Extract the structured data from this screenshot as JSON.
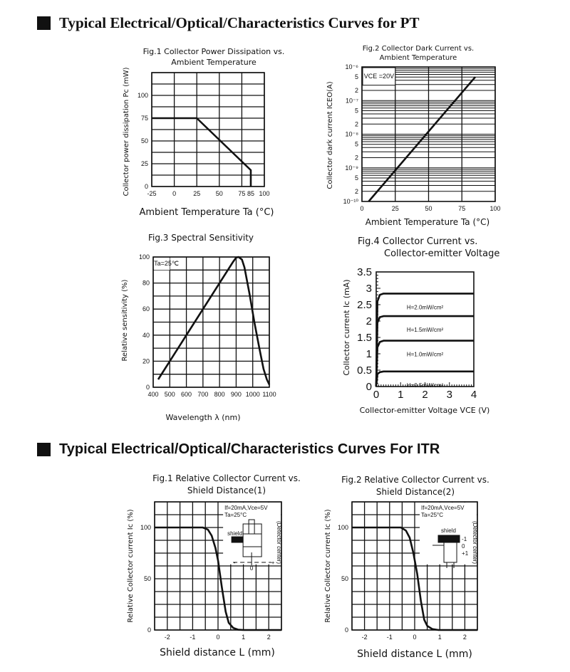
{
  "sections": [
    {
      "title": "Typical Electrical/Optical/Characteristics Curves for PT"
    },
    {
      "title": "Typical Electrical/Optical/Characteristics Curves For ITR"
    }
  ],
  "chart_data": [
    {
      "type": "line",
      "title": [
        "Fig.1 Collector Power Dissipation vs.",
        "Ambient Temperature"
      ],
      "xlabel": "Ambient Temperature  Ta (°C)",
      "ylabel": "Collector power dissipation Pc (mW)",
      "xlim": [
        -25,
        100
      ],
      "ylim": [
        0,
        125
      ],
      "yscale": "linear",
      "grid": true,
      "xgrid": [
        -25,
        0,
        25,
        50,
        75,
        100
      ],
      "ygrid_step": 12.5,
      "xticks": [
        {
          "v": -25,
          "t": "-25"
        },
        {
          "v": 0,
          "t": "0"
        },
        {
          "v": 25,
          "t": "25"
        },
        {
          "v": 50,
          "t": "50"
        },
        {
          "v": 75,
          "t": "75"
        },
        {
          "v": 85,
          "t": "85"
        },
        {
          "v": 100,
          "t": "100"
        }
      ],
      "yticks": [
        {
          "v": 0,
          "t": "0"
        },
        {
          "v": 25,
          "t": "25"
        },
        {
          "v": 50,
          "t": "50"
        },
        {
          "v": 75,
          "t": "75"
        },
        {
          "v": 100,
          "t": "100"
        }
      ],
      "series": [
        {
          "points": [
            [
              -25,
              75
            ],
            [
              25,
              75
            ],
            [
              85,
              18
            ],
            [
              85,
              0
            ]
          ]
        }
      ]
    },
    {
      "type": "line",
      "title": [
        "Fig.2 Collector Dark Current vs.",
        "Ambient Temperature"
      ],
      "xlabel": "Ambient Temperature  Ta (°C)",
      "ylabel": "Collector dark current ICEO(A)",
      "xlim": [
        0,
        100
      ],
      "ylim": [
        1e-10,
        1e-06
      ],
      "yscale": "log",
      "grid": true,
      "xgrid": [
        0,
        25,
        50,
        75,
        100
      ],
      "xticks": [
        {
          "v": 0,
          "t": "0"
        },
        {
          "v": 25,
          "t": "25"
        },
        {
          "v": 50,
          "t": "50"
        },
        {
          "v": 75,
          "t": "75"
        },
        {
          "v": 100,
          "t": "100"
        }
      ],
      "yticks": [
        {
          "v": 1e-06,
          "t": "10⁻⁶"
        },
        {
          "v": 5e-07,
          "t": "5"
        },
        {
          "v": 2e-07,
          "t": "2"
        },
        {
          "v": 1e-07,
          "t": "10⁻⁷"
        },
        {
          "v": 5e-08,
          "t": "5"
        },
        {
          "v": 2e-08,
          "t": "2"
        },
        {
          "v": 1e-08,
          "t": "10⁻⁸"
        },
        {
          "v": 5e-09,
          "t": "5"
        },
        {
          "v": 2e-09,
          "t": "2"
        },
        {
          "v": 1e-09,
          "t": "10⁻⁹"
        },
        {
          "v": 5e-10,
          "t": "5"
        },
        {
          "v": 2e-10,
          "t": "2"
        },
        {
          "v": 1e-10,
          "t": "10⁻¹⁰"
        }
      ],
      "annotation": "VCE =20V",
      "series": [
        {
          "points": [
            [
              5,
              1e-10
            ],
            [
              85,
              5e-07
            ]
          ]
        }
      ]
    },
    {
      "type": "line",
      "title": [
        "Fig.3 Spectral Sensitivity"
      ],
      "xlabel": "Wavelength  λ (nm)",
      "ylabel": "Relative sensitivity (%)",
      "xlim": [
        400,
        1100
      ],
      "ylim": [
        0,
        100
      ],
      "yscale": "linear",
      "grid": true,
      "xgrid": [
        400,
        500,
        600,
        700,
        800,
        900,
        1000,
        1100
      ],
      "ygrid_step": 10,
      "xticks": [
        {
          "v": 400,
          "t": "400"
        },
        {
          "v": 500,
          "t": "500"
        },
        {
          "v": 600,
          "t": "600"
        },
        {
          "v": 700,
          "t": "700"
        },
        {
          "v": 800,
          "t": "800"
        },
        {
          "v": 900,
          "t": "900"
        },
        {
          "v": 1000,
          "t": "1000"
        },
        {
          "v": 1100,
          "t": "1100"
        }
      ],
      "yticks": [
        {
          "v": 0,
          "t": "0"
        },
        {
          "v": 20,
          "t": "20"
        },
        {
          "v": 40,
          "t": "40"
        },
        {
          "v": 60,
          "t": "60"
        },
        {
          "v": 80,
          "t": "80"
        },
        {
          "v": 100,
          "t": "100"
        }
      ],
      "annotation": "Ta=25℃",
      "series": [
        {
          "points": [
            [
              430,
              6
            ],
            [
              880,
              96
            ],
            [
              900,
              99.5
            ],
            [
              915,
              100
            ],
            [
              935,
              98
            ],
            [
              950,
              92
            ],
            [
              980,
              72
            ],
            [
              1010,
              50
            ],
            [
              1040,
              30
            ],
            [
              1065,
              14
            ],
            [
              1085,
              6
            ],
            [
              1100,
              2
            ]
          ]
        }
      ]
    },
    {
      "type": "line",
      "title": [
        "Fig.4  Collector Current vs.",
        "Collector-emitter Voltage"
      ],
      "xlabel": "Collector-emitter Voltage VCE (V)",
      "ylabel": "Collector current Ic (mA)",
      "xlim": [
        0,
        4
      ],
      "ylim": [
        0,
        3.5
      ],
      "yscale": "linear",
      "grid": false,
      "xticks": [
        {
          "v": 0,
          "t": "0"
        },
        {
          "v": 1,
          "t": "1"
        },
        {
          "v": 2,
          "t": "2"
        },
        {
          "v": 3,
          "t": "3"
        },
        {
          "v": 4,
          "t": "4"
        }
      ],
      "yticks": [
        {
          "v": 0,
          "t": "0"
        },
        {
          "v": 0.5,
          "t": "0.5"
        },
        {
          "v": 1,
          "t": "1"
        },
        {
          "v": 1.5,
          "t": "1.5"
        },
        {
          "v": 2,
          "t": "2"
        },
        {
          "v": 2.5,
          "t": "2.5"
        },
        {
          "v": 3,
          "t": "3"
        },
        {
          "v": 3.5,
          "t": "3.5"
        }
      ],
      "series": [
        {
          "name": "H=0.5mW/cm²",
          "points": [
            [
              0,
              0
            ],
            [
              0.05,
              0.38
            ],
            [
              0.15,
              0.44
            ],
            [
              0.3,
              0.46
            ],
            [
              4,
              0.46
            ]
          ]
        },
        {
          "name": "H=1.0mW/cm²",
          "points": [
            [
              0,
              0
            ],
            [
              0.05,
              1.2
            ],
            [
              0.15,
              1.36
            ],
            [
              0.3,
              1.4
            ],
            [
              4,
              1.4
            ]
          ]
        },
        {
          "name": "H=1.5mW/cm²",
          "points": [
            [
              0,
              0
            ],
            [
              0.05,
              1.95
            ],
            [
              0.15,
              2.12
            ],
            [
              0.3,
              2.15
            ],
            [
              4,
              2.15
            ]
          ]
        },
        {
          "name": "H=2.0mW/cm²",
          "points": [
            [
              0,
              0
            ],
            [
              0.05,
              2.6
            ],
            [
              0.15,
              2.8
            ],
            [
              0.3,
              2.84
            ],
            [
              4,
              2.84
            ]
          ]
        }
      ]
    },
    {
      "type": "line",
      "title": [
        "Fig.1 Relative Collector Current vs.",
        "Shield Distance(1)"
      ],
      "xlabel": "Shield distance L (mm)",
      "ylabel": "Relative Collector current Ic (%)",
      "xlim": [
        -2.5,
        2.5
      ],
      "ylim": [
        0,
        125
      ],
      "yscale": "linear",
      "grid": true,
      "xgrid_step": 0.5,
      "ygrid_step": 12.5,
      "xticks": [
        {
          "v": -2,
          "t": "-2"
        },
        {
          "v": -1,
          "t": "-1"
        },
        {
          "v": 0,
          "t": "0"
        },
        {
          "v": 1,
          "t": "1"
        },
        {
          "v": 2,
          "t": "2"
        }
      ],
      "yticks": [
        {
          "v": 0,
          "t": "0"
        },
        {
          "v": 50,
          "t": "50"
        },
        {
          "v": 100,
          "t": "100"
        }
      ],
      "conditions": [
        "If=20mA,Vce=5V",
        "Ta=25°C"
      ],
      "inset": {
        "shield_label": "shield",
        "axis_labels": [
          "-",
          "0",
          "+"
        ],
        "side_label": "(Detector center)"
      },
      "series": [
        {
          "points": [
            [
              -2.5,
              100
            ],
            [
              -0.6,
              100
            ],
            [
              -0.4,
              98
            ],
            [
              -0.25,
              92
            ],
            [
              -0.1,
              80
            ],
            [
              0,
              68
            ],
            [
              0.15,
              42
            ],
            [
              0.3,
              18
            ],
            [
              0.42,
              7
            ],
            [
              0.6,
              2
            ],
            [
              0.8,
              0.3
            ],
            [
              1,
              0
            ],
            [
              2.5,
              0
            ]
          ]
        }
      ]
    },
    {
      "type": "line",
      "title": [
        "Fig.2 Relative Collector Current vs.",
        "Shield Distance(2)"
      ],
      "xlabel": "Shield distance L (mm)",
      "ylabel": "Relative Collector current Ic (%)",
      "xlim": [
        -2.5,
        2.5
      ],
      "ylim": [
        0,
        125
      ],
      "yscale": "linear",
      "grid": true,
      "xgrid_step": 0.5,
      "ygrid_step": 12.5,
      "xticks": [
        {
          "v": -2,
          "t": "-2"
        },
        {
          "v": -1,
          "t": "-1"
        },
        {
          "v": 0,
          "t": "0"
        },
        {
          "v": 1,
          "t": "1"
        },
        {
          "v": 2,
          "t": "2"
        }
      ],
      "yticks": [
        {
          "v": 0,
          "t": "0"
        },
        {
          "v": 50,
          "t": "50"
        },
        {
          "v": 100,
          "t": "100"
        }
      ],
      "conditions": [
        "If=20mA,Vce=5V",
        "Ta=25°C"
      ],
      "inset": {
        "shield_label": "shield",
        "axis_labels": [
          "-1",
          "0",
          "+1"
        ],
        "side_label": "(Detector center)"
      },
      "series": [
        {
          "points": [
            [
              -2.5,
              100
            ],
            [
              -0.55,
              100
            ],
            [
              -0.35,
              97
            ],
            [
              -0.2,
              90
            ],
            [
              -0.05,
              75
            ],
            [
              0.1,
              55
            ],
            [
              0.25,
              28
            ],
            [
              0.38,
              10
            ],
            [
              0.5,
              4
            ],
            [
              0.7,
              1
            ],
            [
              0.95,
              0
            ],
            [
              2.5,
              0
            ]
          ]
        }
      ]
    }
  ]
}
